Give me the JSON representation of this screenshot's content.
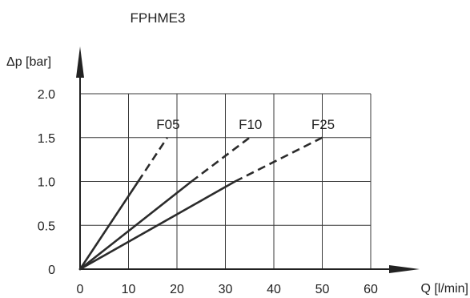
{
  "chart_data": {
    "type": "line",
    "title": "FPHME3",
    "xlabel": "Q [l/min]",
    "ylabel": "Δp [bar]",
    "xlim": [
      0,
      60
    ],
    "ylim": [
      0,
      2.0
    ],
    "x_ticks": [
      "0",
      "10",
      "20",
      "30",
      "40",
      "50",
      "60"
    ],
    "y_ticks": [
      "0",
      "0.5",
      "1.0",
      "1.5",
      "2.0"
    ],
    "grid": true,
    "series": [
      {
        "name": "F05",
        "solid": [
          [
            0,
            0
          ],
          [
            12,
            1.0
          ]
        ],
        "dashed": [
          [
            12,
            1.0
          ],
          [
            18,
            1.5
          ]
        ]
      },
      {
        "name": "F10",
        "solid": [
          [
            0,
            0
          ],
          [
            23,
            1.0
          ]
        ],
        "dashed": [
          [
            23,
            1.0
          ],
          [
            35,
            1.5
          ]
        ]
      },
      {
        "name": "F25",
        "solid": [
          [
            0,
            0
          ],
          [
            32,
            1.0
          ]
        ],
        "dashed": [
          [
            32,
            1.0
          ],
          [
            50,
            1.5
          ]
        ]
      }
    ],
    "colors": {
      "line": "#2b2b2b",
      "grid": "#3a3a3a",
      "axis": "#222222"
    }
  }
}
